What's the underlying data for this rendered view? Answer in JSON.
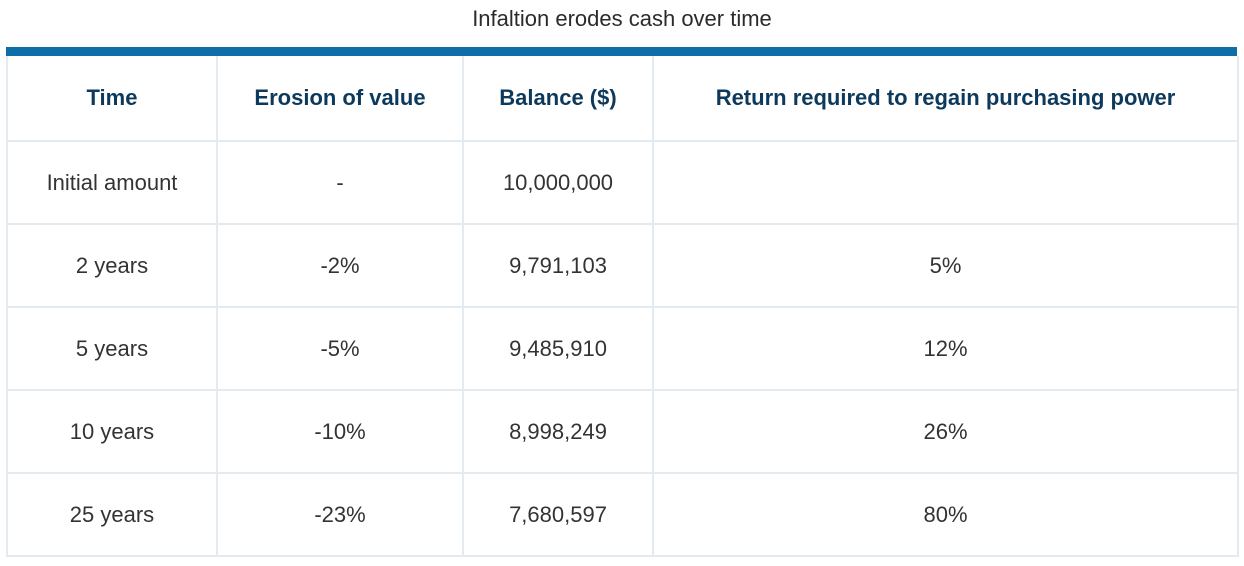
{
  "title": "Infaltion erodes cash over time",
  "colors": {
    "accent_bar": "#0f6ea8",
    "header_text": "#0d3a5c",
    "grid_lines": "#e4ebf0"
  },
  "chart_data": {
    "type": "table",
    "title": "Infaltion erodes cash over time",
    "columns": [
      "Time",
      "Erosion of value",
      "Balance ($)",
      "Return required to regain purchasing power"
    ],
    "rows": [
      [
        "Initial amount",
        "-",
        "10,000,000",
        ""
      ],
      [
        "2 years",
        "-2%",
        "9,791,103",
        "5%"
      ],
      [
        "5 years",
        "-5%",
        "9,485,910",
        "12%"
      ],
      [
        "10 years",
        "-10%",
        "8,998,249",
        "26%"
      ],
      [
        "25 years",
        "-23%",
        "7,680,597",
        "80%"
      ]
    ]
  }
}
